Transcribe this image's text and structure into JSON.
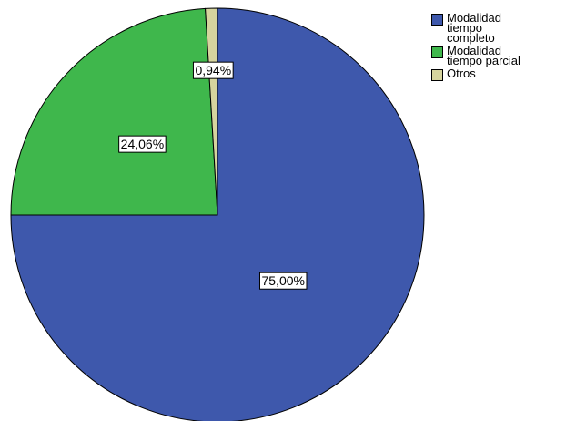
{
  "chart_data": {
    "type": "pie",
    "title": "",
    "slices": [
      {
        "label": "Modalidad tiempo completo",
        "value": 75.0,
        "display": "75,00%",
        "color": "#3e58ac"
      },
      {
        "label": "Modalidad tiempo parcial",
        "value": 24.06,
        "display": "24,06%",
        "color": "#3fb74c"
      },
      {
        "label": "Otros",
        "value": 0.94,
        "display": "0,94%",
        "color": "#d6d49e"
      }
    ],
    "start_angle": "12 o'clock",
    "direction": "clockwise",
    "legend_position": "top-right"
  }
}
